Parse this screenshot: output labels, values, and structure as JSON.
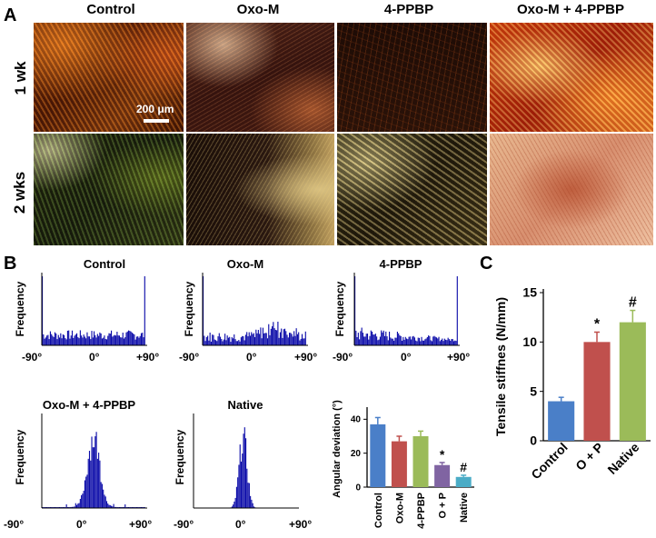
{
  "panel_a": {
    "letter": "A",
    "columns": [
      "Control",
      "Oxo-M",
      "4-PPBP",
      "Oxo-M + 4-PPBP"
    ],
    "rows": [
      "1 wk",
      "2 wks"
    ],
    "scale_bar": "200 μm"
  },
  "panel_b": {
    "letter": "B",
    "ylabel": "Frequency",
    "x_ticks": [
      "-90°",
      "0°",
      "+90°"
    ],
    "histograms": [
      {
        "title": "Control",
        "shape": "uniform_edges"
      },
      {
        "title": "Oxo-M",
        "shape": "uniform_hump"
      },
      {
        "title": "4-PPBP",
        "shape": "uniform_edges_left"
      },
      {
        "title": "Oxo-M + 4-PPBP",
        "shape": "peak_wide"
      },
      {
        "title": "Native",
        "shape": "peak_narrow"
      }
    ]
  },
  "chart_data": [
    {
      "type": "bar",
      "title": "",
      "ylabel": "Angular deviation (°)",
      "xlabel": "",
      "categories": [
        "Control",
        "Oxo-M",
        "4-PPBP",
        "O + P",
        "Native"
      ],
      "values": [
        37,
        27,
        30,
        13,
        6
      ],
      "errors": [
        4,
        3,
        3,
        1.5,
        1
      ],
      "colors": [
        "#4a7fc8",
        "#c0504d",
        "#9bbb59",
        "#8064a2",
        "#4bacc6"
      ],
      "annotations": [
        "",
        "",
        "",
        "*",
        "#"
      ],
      "ylim": [
        0,
        45
      ],
      "yticks": [
        "0",
        "20",
        "40"
      ],
      "ytick_values": [
        0,
        20,
        40
      ]
    },
    {
      "type": "bar",
      "title": "",
      "ylabel": "Tensile stiffnes (N/mm)",
      "xlabel": "",
      "categories": [
        "Control",
        "O + P",
        "Native"
      ],
      "values": [
        4,
        10,
        12
      ],
      "errors": [
        0.4,
        1.0,
        1.2
      ],
      "colors": [
        "#4a7fc8",
        "#c0504d",
        "#9bbb59"
      ],
      "annotations": [
        "",
        "*",
        "#"
      ],
      "ylim": [
        0,
        15
      ],
      "yticks": [
        "0",
        "5",
        "10",
        "15"
      ],
      "ytick_values": [
        0,
        5,
        10,
        15
      ]
    }
  ],
  "panel_c": {
    "letter": "C"
  }
}
